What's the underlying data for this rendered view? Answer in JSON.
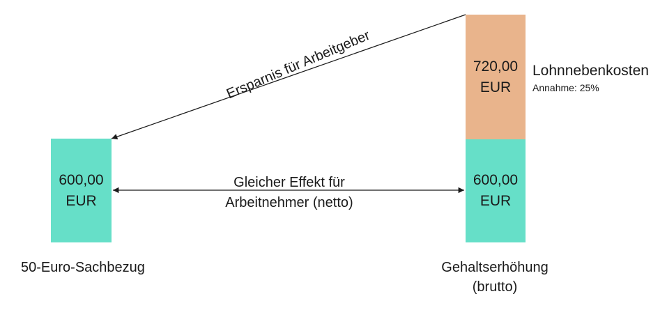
{
  "colors": {
    "net_box": "#66dfc8",
    "overhead_box": "#e9b48c",
    "arrow": "#1a1a1a"
  },
  "left_box": {
    "amount": "600,00",
    "currency": "EUR"
  },
  "left_label": "50-Euro-Sachbezug",
  "right_bottom_box": {
    "amount": "600,00",
    "currency": "EUR"
  },
  "right_top_box": {
    "amount": "720,00",
    "currency": "EUR"
  },
  "right_label": {
    "line1": "Gehaltserhöhung",
    "line2": "(brutto)"
  },
  "side_note": {
    "title": "Lohnnebenkosten",
    "subtitle": "Annahme: 25%"
  },
  "middle_arrow_text": {
    "line1": "Gleicher Effekt für",
    "line2": "Arbeitnehmer (netto)"
  },
  "diagonal_arrow_text": "Ersparnis für Arbeitgeber"
}
